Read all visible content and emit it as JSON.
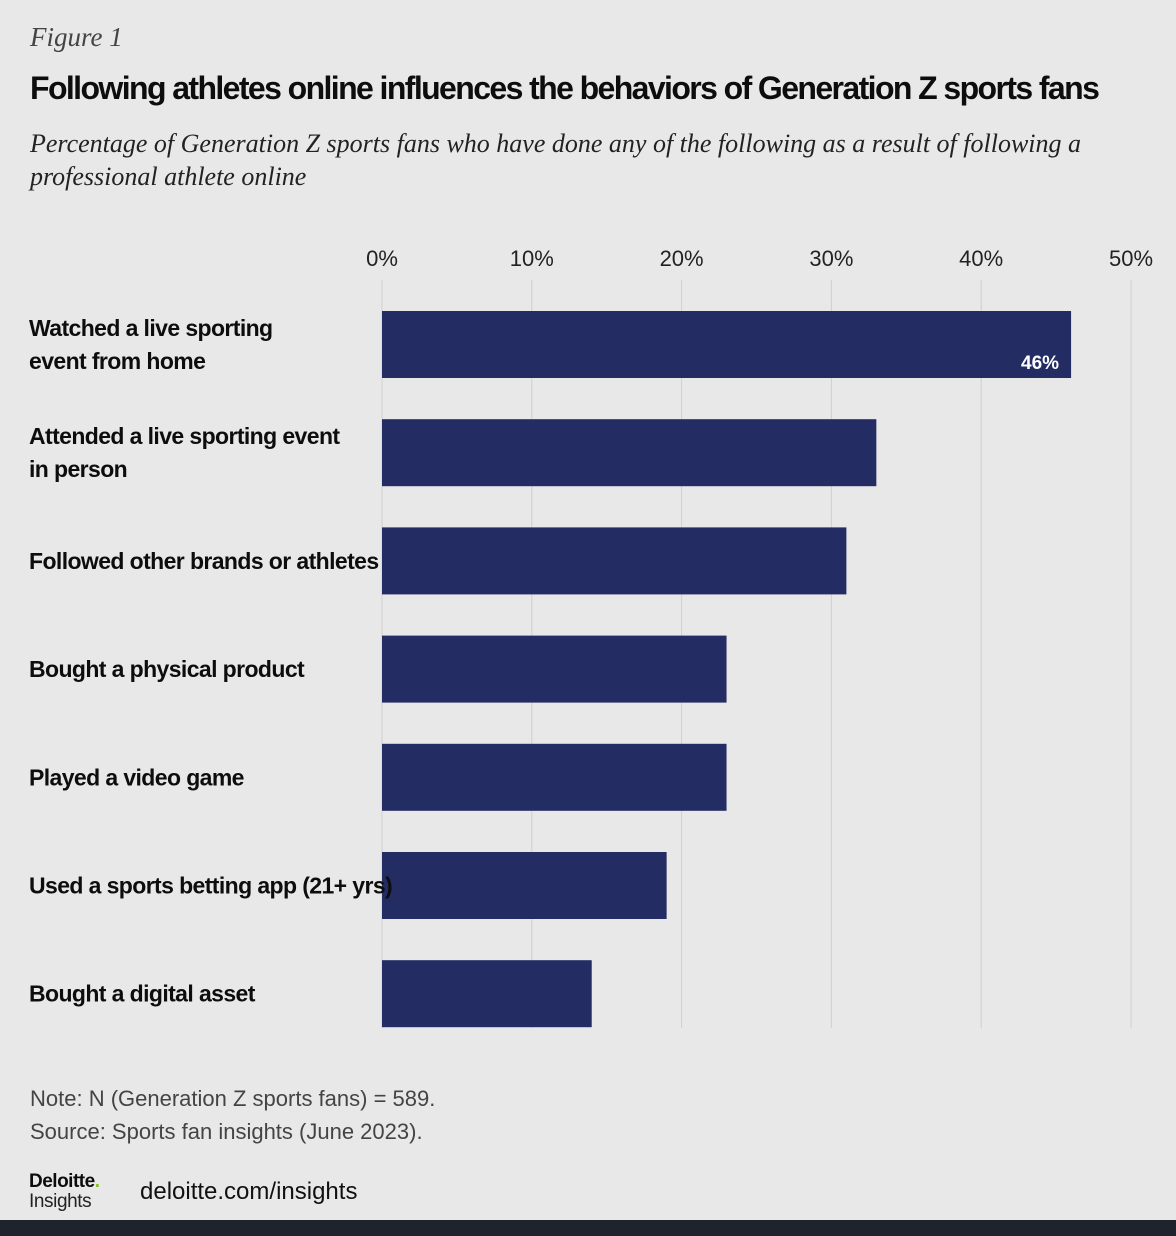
{
  "figure_label": "Figure 1",
  "chart_data": {
    "type": "bar",
    "orientation": "horizontal",
    "title": "Following athletes online influences the behaviors of Generation Z sports fans",
    "subtitle": "Percentage of Generation Z sports fans who have done any of the following as a result of following a professional athlete online",
    "categories": [
      "Watched a live sporting event from home",
      "Attended a live sporting event in person",
      "Followed other brands or athletes",
      "Bought a physical product",
      "Played a video game",
      "Used a sports betting app (21+ yrs)",
      "Bought a digital asset"
    ],
    "category_lines": [
      [
        "Watched a live sporting",
        "event from home"
      ],
      [
        "Attended a live sporting event",
        "in person"
      ],
      [
        "Followed other brands or athletes"
      ],
      [
        "Bought a physical product"
      ],
      [
        "Played a video game"
      ],
      [
        "Used a sports betting app (21+ yrs)"
      ],
      [
        "Bought a digital asset"
      ]
    ],
    "values": [
      46,
      33,
      31,
      23,
      23,
      19,
      14
    ],
    "data_labels": [
      "46%",
      "",
      "",
      "",
      "",
      "",
      ""
    ],
    "xlim": [
      0,
      50
    ],
    "ticks": [
      "0%",
      "10%",
      "20%",
      "30%",
      "40%",
      "50%"
    ],
    "tick_values": [
      0,
      10,
      20,
      30,
      40,
      50
    ],
    "axis_position": "top",
    "grid": true,
    "bar_color": "#232c63",
    "grid_color": "#cfcfcf",
    "label_color": "#ffffff"
  },
  "note": "Note: N (Generation Z sports fans) = 589.",
  "source": "Source: Sports fan insights (June 2023).",
  "logo": {
    "brand": "Deloitte",
    "dot": ".",
    "sub": "Insights"
  },
  "site": "deloitte.com/insights"
}
